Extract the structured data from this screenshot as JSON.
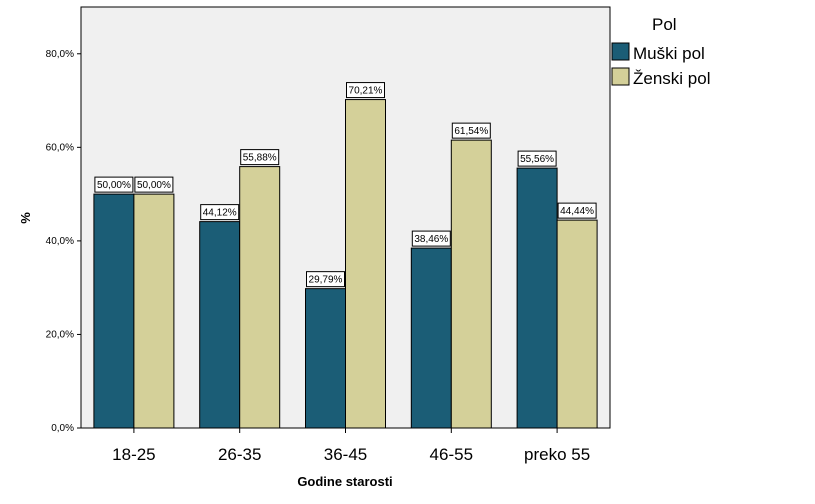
{
  "chart_data": {
    "type": "bar",
    "xlabel": "Godine starosti",
    "ylabel": "%",
    "ylim": [
      0,
      90
    ],
    "yticks": [
      "0,0%",
      "20,0%",
      "40,0%",
      "60,0%",
      "80,0%"
    ],
    "ytick_values": [
      0,
      20,
      40,
      60,
      80
    ],
    "categories": [
      "18-25",
      "26-35",
      "36-45",
      "46-55",
      "preko 55"
    ],
    "legend": {
      "title": "Pol",
      "placement": "right"
    },
    "grid": false,
    "series": [
      {
        "name": "Muški pol",
        "color": "#1b5d76",
        "values": [
          50.0,
          44.12,
          29.79,
          38.46,
          55.56
        ],
        "labels": [
          "50,00%",
          "44,12%",
          "29,79%",
          "38,46%",
          "55,56%"
        ]
      },
      {
        "name": "Ženski pol",
        "color": "#d4d099",
        "values": [
          50.0,
          55.88,
          70.21,
          61.54,
          44.44
        ],
        "labels": [
          "50,00%",
          "55,88%",
          "70,21%",
          "61,54%",
          "44,44%"
        ]
      }
    ],
    "plot_background": "#f0f0f0"
  }
}
